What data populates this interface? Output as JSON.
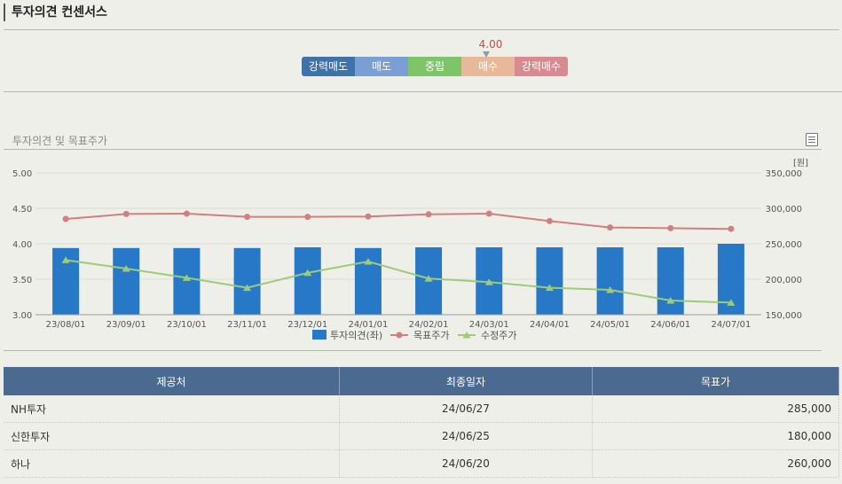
{
  "header": {
    "title": "투자의견 컨센서스"
  },
  "consensus": {
    "score": "4.00",
    "scale": [
      {
        "label": "강력매도",
        "color": "#3d73a8"
      },
      {
        "label": "매도",
        "color": "#7a9fd4"
      },
      {
        "label": "중립",
        "color": "#7ec56a"
      },
      {
        "label": "매수",
        "color": "#e8b999"
      },
      {
        "label": "강력매수",
        "color": "#d88a90"
      }
    ]
  },
  "section": {
    "subtitle": "투자의견 및 목표주가"
  },
  "chart_data": {
    "type": "bar+line",
    "title": "투자의견 및 목표주가",
    "categories": [
      "23/08/01",
      "23/09/01",
      "23/10/01",
      "23/11/01",
      "23/12/01",
      "24/01/01",
      "24/02/01",
      "24/03/01",
      "24/04/01",
      "24/05/01",
      "24/06/01",
      "24/07/01"
    ],
    "y_left": {
      "ylim": [
        3.0,
        5.0
      ],
      "ticks": [
        "5.00",
        "4.50",
        "4.00",
        "3.50",
        "3.00"
      ]
    },
    "y_right": {
      "unit_label": "[원]",
      "ylim": [
        150000,
        350000
      ],
      "ticks": [
        "350,000",
        "300,000",
        "250,000",
        "200,000",
        "150,000"
      ]
    },
    "series": [
      {
        "name": "투자의견(좌)",
        "type": "bar",
        "axis": "left",
        "color": "#2878c8",
        "values": [
          3.94,
          3.94,
          3.94,
          3.94,
          3.95,
          3.94,
          3.95,
          3.95,
          3.95,
          3.95,
          3.95,
          4.0
        ]
      },
      {
        "name": "목표주가",
        "type": "line",
        "axis": "right",
        "color": "#d08080",
        "values": [
          285000,
          292000,
          292500,
          288000,
          288000,
          288500,
          291500,
          292500,
          282000,
          273000,
          272000,
          271000
        ]
      },
      {
        "name": "수정주가",
        "type": "line",
        "axis": "right",
        "color": "#9ccb7a",
        "values": [
          227000,
          215000,
          202000,
          188000,
          209000,
          225000,
          201000,
          196000,
          188000,
          185000,
          170000,
          167000
        ]
      }
    ]
  },
  "table": {
    "headers": [
      "제공처",
      "최종일자",
      "목표가"
    ],
    "rows": [
      [
        "NH투자",
        "24/06/27",
        "285,000"
      ],
      [
        "신한투자",
        "24/06/25",
        "180,000"
      ],
      [
        "하나",
        "24/06/20",
        "260,000"
      ]
    ]
  }
}
